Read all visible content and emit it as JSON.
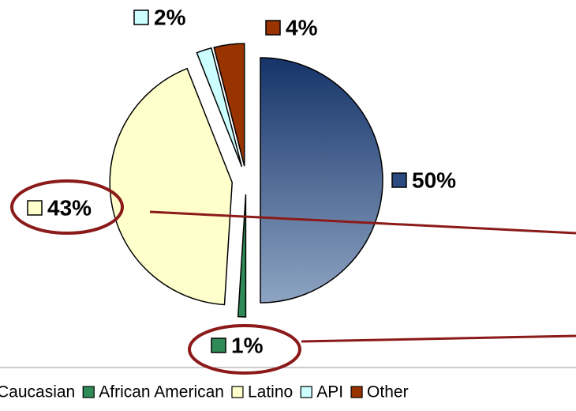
{
  "chart_data": {
    "type": "pie",
    "categories": [
      "Caucasian",
      "African American",
      "Latino",
      "API",
      "Other"
    ],
    "values": [
      50,
      1,
      43,
      2,
      4
    ],
    "value_labels": [
      "50%",
      "1%",
      "43%",
      "2%",
      "4%"
    ],
    "colors": [
      "#2a4a80",
      "#2e8b57",
      "#ffffcc",
      "#ccffff",
      "#993300"
    ]
  }
}
